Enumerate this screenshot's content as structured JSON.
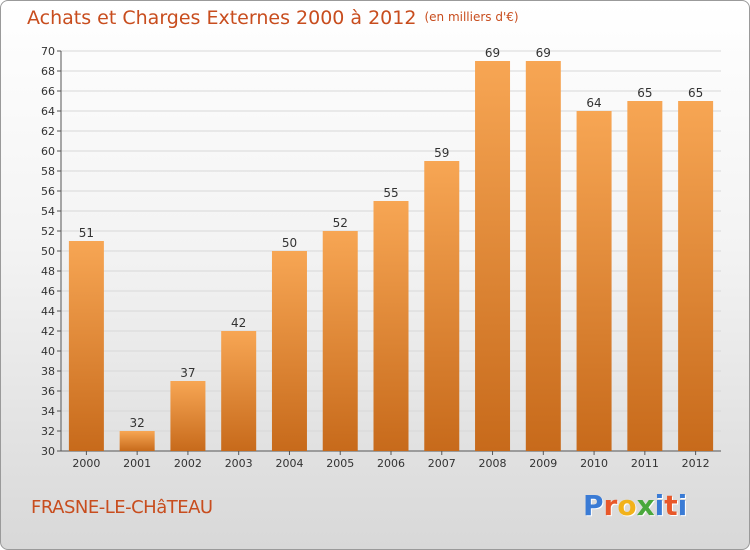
{
  "header": {
    "title": "Achats et Charges Externes 2000 à 2012",
    "unit": "(en milliers d'€)"
  },
  "footer": {
    "commune": "FRASNE-LE-CHâTEAU",
    "logo": {
      "text": "Proxiti",
      "letter_colors": [
        "#3a7bd5",
        "#e8582a",
        "#f2b21a",
        "#4aa83c",
        "#3a7bd5",
        "#e8582a",
        "#3a7bd5"
      ]
    }
  },
  "colors": {
    "title": "#c84d1e",
    "bar_top": "#f7a654",
    "bar_bottom": "#c76a1b",
    "grid": "#d8d8d8",
    "axis": "#555555"
  },
  "chart_data": {
    "type": "bar",
    "title": "Achats et Charges Externes 2000 à 2012",
    "categories": [
      "2000",
      "2001",
      "2002",
      "2003",
      "2004",
      "2005",
      "2006",
      "2007",
      "2008",
      "2009",
      "2010",
      "2011",
      "2012"
    ],
    "values": [
      51,
      32,
      37,
      42,
      50,
      52,
      55,
      59,
      69,
      69,
      64,
      65,
      65
    ],
    "ylim": [
      30,
      70
    ],
    "yticks": [
      30,
      32,
      34,
      36,
      38,
      40,
      42,
      44,
      46,
      48,
      50,
      52,
      54,
      56,
      58,
      60,
      62,
      64,
      66,
      68,
      70
    ],
    "grid": true,
    "xlabel": "",
    "ylabel": ""
  }
}
